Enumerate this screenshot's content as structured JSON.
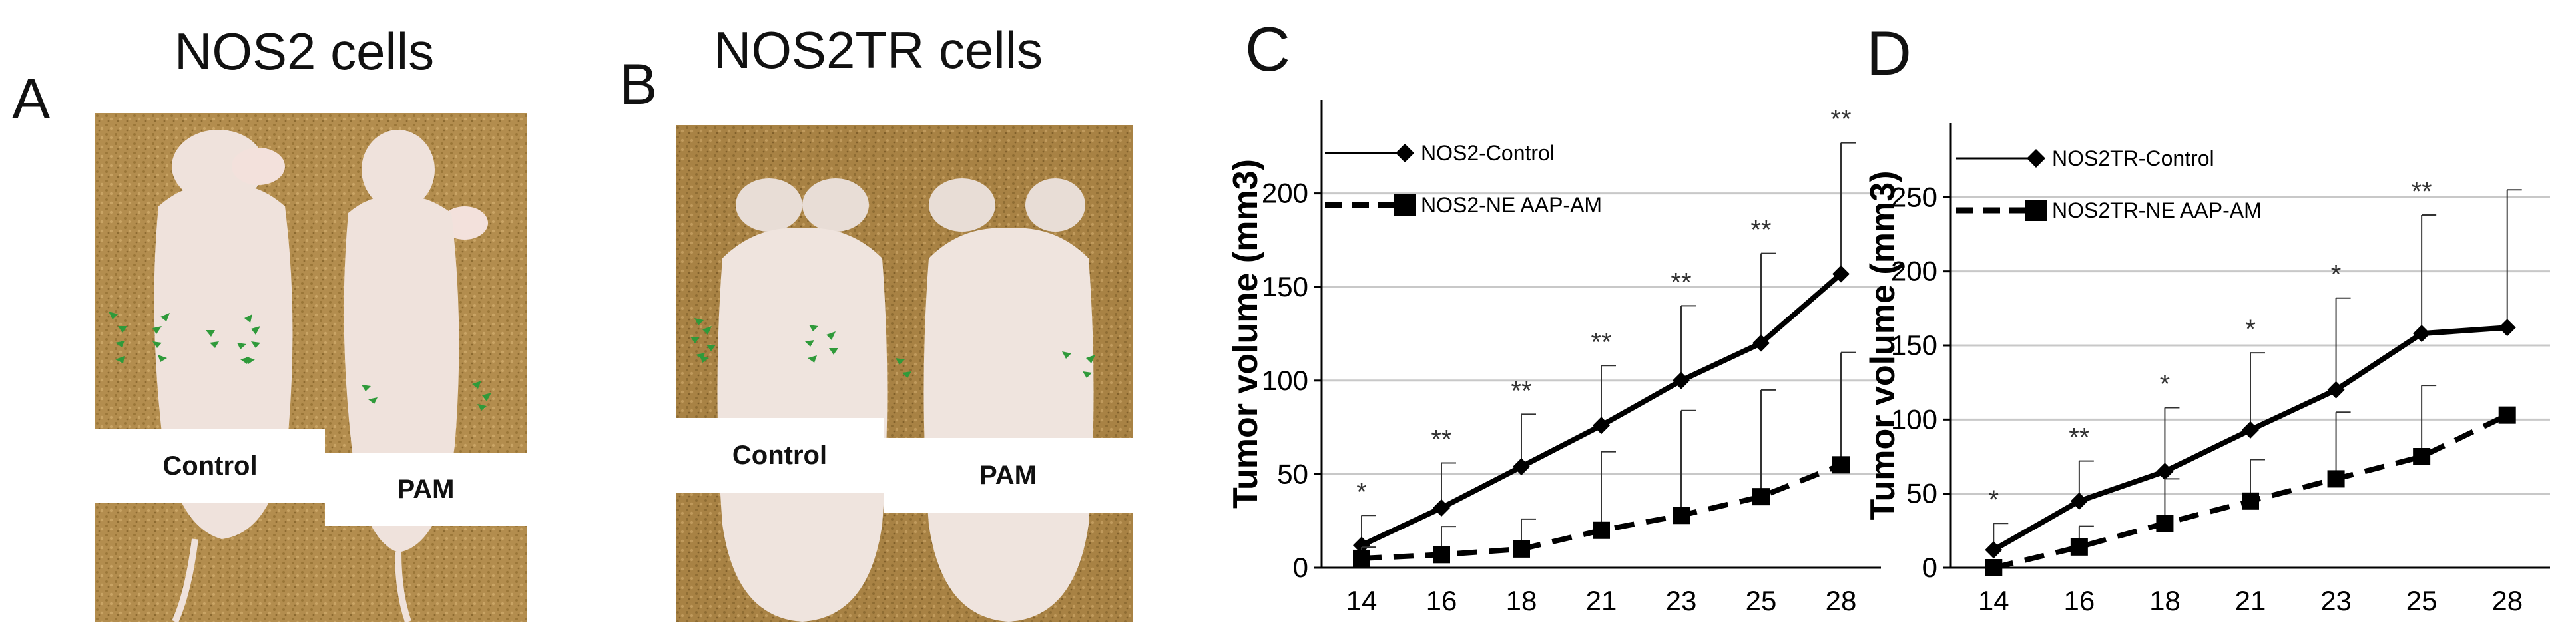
{
  "panels": {
    "A": {
      "letter": "A",
      "title": "NOS2 cells",
      "labels": [
        "Control",
        "PAM"
      ]
    },
    "B": {
      "letter": "B",
      "title": "NOS2TR cells",
      "labels": [
        "Control",
        "PAM"
      ]
    },
    "C": {
      "letter": "C"
    },
    "D": {
      "letter": "D"
    }
  },
  "colors": {
    "sand": "#b38d4e",
    "mouse": "#efe2dc",
    "arrow": "#2f9a3a",
    "grid": "#c8c8c8",
    "ink": "#000000"
  },
  "chart_data": [
    {
      "type": "line",
      "categories": [
        "14",
        "16",
        "18",
        "21",
        "23",
        "25",
        "28"
      ],
      "ylabel": "Tumor volume (mm3)",
      "ylim": [
        0,
        250
      ],
      "yticks": [
        0,
        50,
        100,
        150,
        200
      ],
      "grid": true,
      "legend_position": "top-left",
      "series": [
        {
          "name": "NOS2-Control",
          "style": "solid",
          "marker": "diamond",
          "values": [
            12,
            32,
            54,
            76,
            100,
            120,
            157
          ],
          "errors": [
            16,
            24,
            28,
            32,
            40,
            48,
            70
          ]
        },
        {
          "name": "NOS2-NE AAP-AM",
          "style": "dashed",
          "marker": "square",
          "values": [
            5,
            7,
            10,
            20,
            28,
            38,
            55
          ],
          "errors": [
            6,
            15,
            16,
            42,
            56,
            57,
            60
          ]
        }
      ],
      "annotations": [
        "*",
        "**",
        "**",
        "**",
        "**",
        "**",
        "**"
      ]
    },
    {
      "type": "line",
      "categories": [
        "14",
        "16",
        "18",
        "21",
        "23",
        "25",
        "28"
      ],
      "ylabel": "Tumor volume (mm3)",
      "ylim": [
        0,
        300
      ],
      "yticks": [
        0,
        50,
        100,
        150,
        200,
        250
      ],
      "grid": true,
      "legend_position": "top-left",
      "series": [
        {
          "name": "NOS2TR-Control",
          "style": "solid",
          "marker": "diamond",
          "values": [
            12,
            45,
            65,
            93,
            120,
            158,
            162
          ],
          "errors": [
            18,
            27,
            43,
            52,
            62,
            80,
            93
          ]
        },
        {
          "name": "NOS2TR-NE AAP-AM",
          "style": "dashed",
          "marker": "square",
          "values": [
            0,
            14,
            30,
            45,
            60,
            75,
            103
          ],
          "errors": [
            0,
            14,
            30,
            28,
            45,
            48,
            0
          ]
        }
      ],
      "annotations": [
        "*",
        "**",
        "*",
        "*",
        "*",
        "**",
        ""
      ]
    }
  ]
}
